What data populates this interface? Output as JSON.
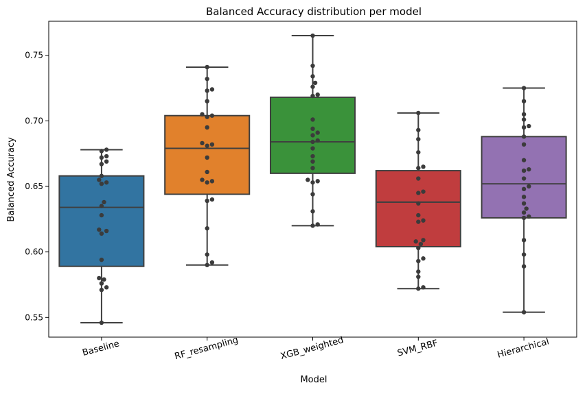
{
  "chart_data": {
    "type": "box",
    "title": "Balanced Accuracy distribution per model",
    "xlabel": "Model",
    "ylabel": "Balanced Accuracy",
    "ylim": [
      0.535,
      0.776
    ],
    "yticks": [
      0.55,
      0.6,
      0.65,
      0.7,
      0.75
    ],
    "ytick_labels": [
      "0.55",
      "0.60",
      "0.65",
      "0.70",
      "0.75"
    ],
    "grid": false,
    "legend": "none",
    "categories": [
      "Baseline",
      "RF_resampling",
      "XGB_weighted",
      "SVM_RBF",
      "Hierarchical"
    ],
    "colors": [
      "#3274a1",
      "#e1812c",
      "#3a923a",
      "#c03d3e",
      "#9372b2"
    ],
    "point_color": "#3b3b3b",
    "line_color": "#3f3f3f",
    "boxes": [
      {
        "whisker_low": 0.546,
        "q1": 0.589,
        "median": 0.634,
        "q3": 0.658,
        "whisker_high": 0.678
      },
      {
        "whisker_low": 0.59,
        "q1": 0.644,
        "median": 0.679,
        "q3": 0.704,
        "whisker_high": 0.741
      },
      {
        "whisker_low": 0.62,
        "q1": 0.66,
        "median": 0.684,
        "q3": 0.718,
        "whisker_high": 0.765
      },
      {
        "whisker_low": 0.572,
        "q1": 0.604,
        "median": 0.638,
        "q3": 0.662,
        "whisker_high": 0.706
      },
      {
        "whisker_low": 0.554,
        "q1": 0.626,
        "median": 0.652,
        "q3": 0.688,
        "whisker_high": 0.725
      }
    ],
    "points": [
      [
        0.546,
        0.571,
        0.573,
        0.576,
        0.579,
        0.58,
        0.594,
        0.614,
        0.616,
        0.617,
        0.628,
        0.635,
        0.638,
        0.652,
        0.653,
        0.655,
        0.658,
        0.667,
        0.669,
        0.672,
        0.673,
        0.677,
        0.678
      ],
      [
        0.59,
        0.592,
        0.598,
        0.618,
        0.639,
        0.64,
        0.653,
        0.654,
        0.655,
        0.661,
        0.672,
        0.681,
        0.682,
        0.683,
        0.695,
        0.703,
        0.704,
        0.705,
        0.715,
        0.723,
        0.724,
        0.732,
        0.741
      ],
      [
        0.62,
        0.621,
        0.631,
        0.644,
        0.653,
        0.654,
        0.655,
        0.664,
        0.669,
        0.673,
        0.679,
        0.684,
        0.685,
        0.689,
        0.691,
        0.694,
        0.701,
        0.719,
        0.72,
        0.726,
        0.729,
        0.734,
        0.742,
        0.765
      ],
      [
        0.572,
        0.573,
        0.581,
        0.585,
        0.593,
        0.595,
        0.603,
        0.606,
        0.608,
        0.609,
        0.623,
        0.624,
        0.628,
        0.637,
        0.645,
        0.646,
        0.656,
        0.664,
        0.665,
        0.676,
        0.686,
        0.693,
        0.706
      ],
      [
        0.554,
        0.589,
        0.598,
        0.609,
        0.626,
        0.627,
        0.63,
        0.633,
        0.637,
        0.642,
        0.648,
        0.65,
        0.656,
        0.662,
        0.663,
        0.67,
        0.682,
        0.688,
        0.695,
        0.696,
        0.701,
        0.705,
        0.715,
        0.725
      ]
    ]
  }
}
